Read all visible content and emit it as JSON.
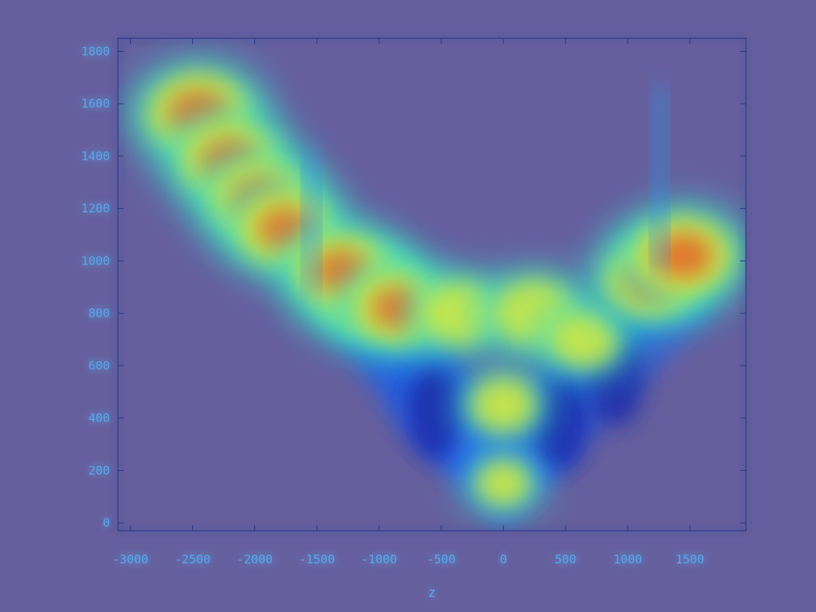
{
  "colors": {
    "background": "#665f9e",
    "axis_frame": "#2a3a8a",
    "tick_text": "#55a8e8",
    "glow": "#7ec8ff"
  },
  "chart_data": {
    "type": "heatmap",
    "xlabel": "z",
    "ylabel": "",
    "xlim": [
      -3100,
      1950
    ],
    "ylim": [
      -30,
      1850
    ],
    "x_ticks": [
      -3000,
      -2500,
      -2000,
      -1500,
      -1000,
      -500,
      0,
      500,
      1000,
      1500
    ],
    "y_ticks": [
      0,
      200,
      400,
      600,
      800,
      1000,
      1200,
      1400,
      1600,
      1800
    ],
    "x_tick_labels": [
      "-3000",
      "-2500",
      "-2000",
      "-1500",
      "-1000",
      "-500",
      "0",
      "500",
      "1000",
      "1500"
    ],
    "y_tick_labels": [
      "0",
      "200",
      "400",
      "600",
      "800",
      "1000",
      "1200",
      "1400",
      "1600",
      "1800"
    ],
    "colormap": "jet",
    "grid": false,
    "hotspots": [
      {
        "x": -2450,
        "y": 1560,
        "intensity": 1.0
      },
      {
        "x": -2200,
        "y": 1380,
        "intensity": 0.95
      },
      {
        "x": -1950,
        "y": 1230,
        "intensity": 0.95
      },
      {
        "x": -1750,
        "y": 1120,
        "intensity": 0.9
      },
      {
        "x": -1100,
        "y": 880,
        "intensity": 0.95
      },
      {
        "x": -1300,
        "y": 960,
        "intensity": 0.9
      },
      {
        "x": -850,
        "y": 820,
        "intensity": 0.85
      },
      {
        "x": -350,
        "y": 800,
        "intensity": 0.7
      },
      {
        "x": 250,
        "y": 800,
        "intensity": 0.75
      },
      {
        "x": 650,
        "y": 700,
        "intensity": 0.6
      },
      {
        "x": 1200,
        "y": 930,
        "intensity": 0.9
      },
      {
        "x": 1450,
        "y": 1020,
        "intensity": 0.95
      },
      {
        "x": 0,
        "y": 450,
        "intensity": 0.55
      },
      {
        "x": 0,
        "y": 150,
        "intensity": 0.45
      }
    ],
    "cold_zones": [
      {
        "x": -550,
        "y": 420
      },
      {
        "x": 450,
        "y": 380
      },
      {
        "x": 900,
        "y": 550
      }
    ]
  }
}
